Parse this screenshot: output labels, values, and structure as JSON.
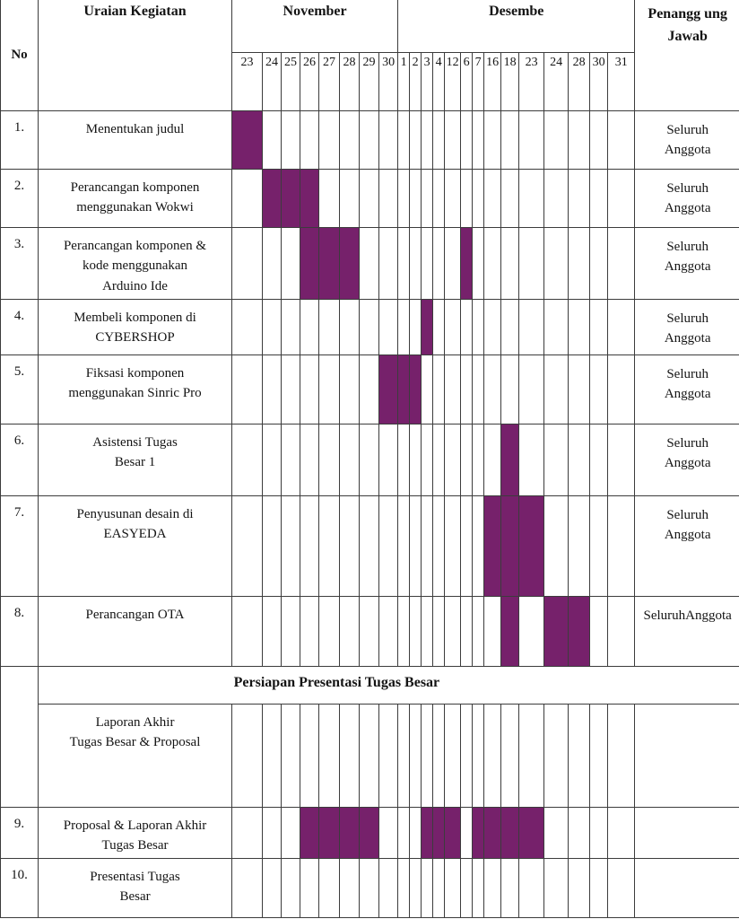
{
  "colors": {
    "bar_fill": "#76216B",
    "grid_line": "#3c3c3c",
    "text": "#141414",
    "background": "#ffffff"
  },
  "table": {
    "header": {
      "no": "No",
      "activity": "Uraian Kegiatan",
      "month1": "November",
      "month2": "Desembe",
      "pic": "Penangg ung\nJawab"
    },
    "dates": {
      "november": [
        "23",
        "24",
        "25",
        "26",
        "27",
        "28",
        "29",
        "30"
      ],
      "december": [
        "1",
        "2",
        "3",
        "4",
        "12",
        "6",
        "7",
        "16",
        "18",
        "23",
        "24",
        "28",
        "30",
        "31"
      ]
    },
    "section_row": {
      "label": "Persiapan Presentasi Tugas Besar"
    },
    "rows": [
      {
        "no": "1.",
        "activity": "Menentukan judul",
        "pic": "Seluruh\nAnggota",
        "filled": [
          0
        ]
      },
      {
        "no": "2.",
        "activity": "Perancangan komponen\nmenggunakan Wokwi",
        "pic": "Seluruh\nAnggota",
        "filled": [
          1,
          2,
          3
        ]
      },
      {
        "no": "3.",
        "activity": "Perancangan komponen &\nkode menggunakan\nArduino Ide",
        "pic": "Seluruh\nAnggota",
        "filled": [
          3,
          4,
          5,
          13
        ]
      },
      {
        "no": "4.",
        "activity": "Membeli komponen di\nCYBERSHOP",
        "pic": "Seluruh\nAnggota",
        "filled": [
          10
        ]
      },
      {
        "no": "5.",
        "activity": "Fiksasi komponen\nmenggunakan Sinric Pro",
        "pic": "Seluruh\nAnggota",
        "filled": [
          7,
          8,
          9
        ]
      },
      {
        "no": "6.",
        "activity": "Asistensi Tugas\nBesar 1",
        "pic": "Seluruh\nAnggota",
        "filled": [
          16
        ]
      },
      {
        "no": "7.",
        "activity": "Penyusunan desain di\nEASYEDA",
        "pic": "Seluruh\nAnggota",
        "filled": [
          15,
          16,
          17
        ]
      },
      {
        "no": "8.",
        "activity": "Perancangan OTA",
        "pic": "SeluruhAnggota",
        "filled": [
          16,
          18,
          19
        ]
      },
      {
        "type": "section"
      },
      {
        "no": "",
        "activity": "Laporan Akhir\nTugas Besar  & Proposal",
        "pic": "",
        "filled": [],
        "merged_no": true
      },
      {
        "no": "9.",
        "activity": "Proposal & Laporan Akhir\nTugas Besar",
        "pic": "",
        "filled": [
          3,
          4,
          5,
          6,
          10,
          11,
          12,
          14,
          15,
          16,
          17
        ]
      },
      {
        "no": "10.",
        "activity": "Presentasi Tugas\nBesar",
        "pic": "",
        "filled": []
      }
    ]
  }
}
